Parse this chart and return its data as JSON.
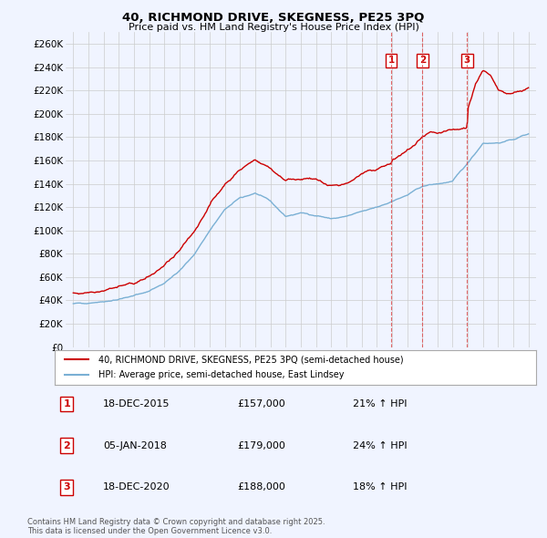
{
  "title_line1": "40, RICHMOND DRIVE, SKEGNESS, PE25 3PQ",
  "title_line2": "Price paid vs. HM Land Registry's House Price Index (HPI)",
  "background_color": "#f0f4ff",
  "red_color": "#cc0000",
  "blue_color": "#7ab0d4",
  "grid_color": "#cccccc",
  "marker_dates": [
    2015.96,
    2018.01,
    2020.96
  ],
  "marker_labels": [
    "1",
    "2",
    "3"
  ],
  "legend_entries": [
    "40, RICHMOND DRIVE, SKEGNESS, PE25 3PQ (semi-detached house)",
    "HPI: Average price, semi-detached house, East Lindsey"
  ],
  "table_data": [
    [
      "1",
      "18-DEC-2015",
      "£157,000",
      "21% ↑ HPI"
    ],
    [
      "2",
      "05-JAN-2018",
      "£179,000",
      "24% ↑ HPI"
    ],
    [
      "3",
      "18-DEC-2020",
      "£188,000",
      "18% ↑ HPI"
    ]
  ],
  "footer_text": "Contains HM Land Registry data © Crown copyright and database right 2025.\nThis data is licensed under the Open Government Licence v3.0.",
  "ylim": [
    0,
    270000
  ],
  "xlim_start": 1994.5,
  "xlim_end": 2025.5,
  "ytick_step": 20000
}
